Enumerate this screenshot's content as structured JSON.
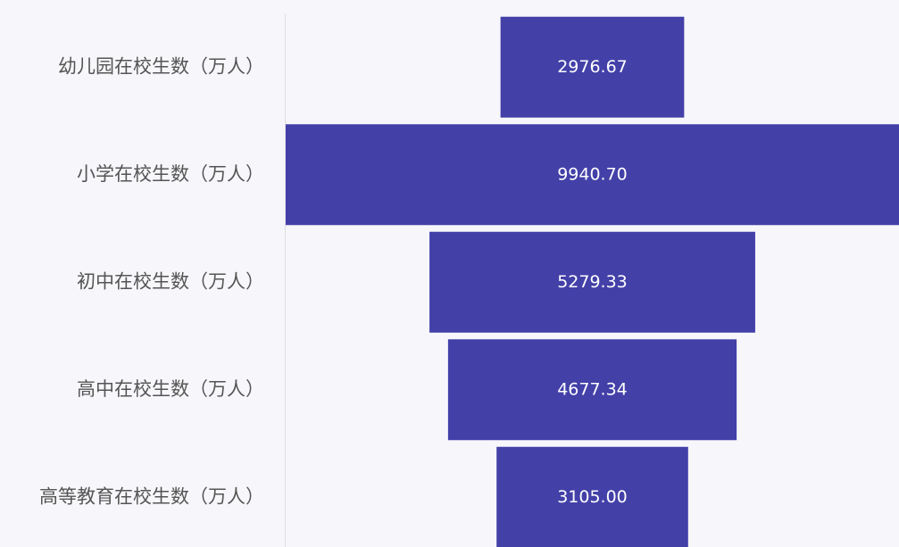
{
  "chart_data": {
    "type": "funnel",
    "categories": [
      "幼儿园在校生数（万人）",
      "小学在校生数（万人）",
      "初中在校生数（万人）",
      "高中在校生数（万人）",
      "高等教育在校生数（万人）"
    ],
    "values": [
      2976.67,
      9940.7,
      5279.33,
      4677.34,
      3105
    ],
    "value_labels": [
      "2976.67",
      "9940.70",
      "5279.33",
      "4677.34",
      "3105.00"
    ],
    "color": "#4340a8"
  }
}
